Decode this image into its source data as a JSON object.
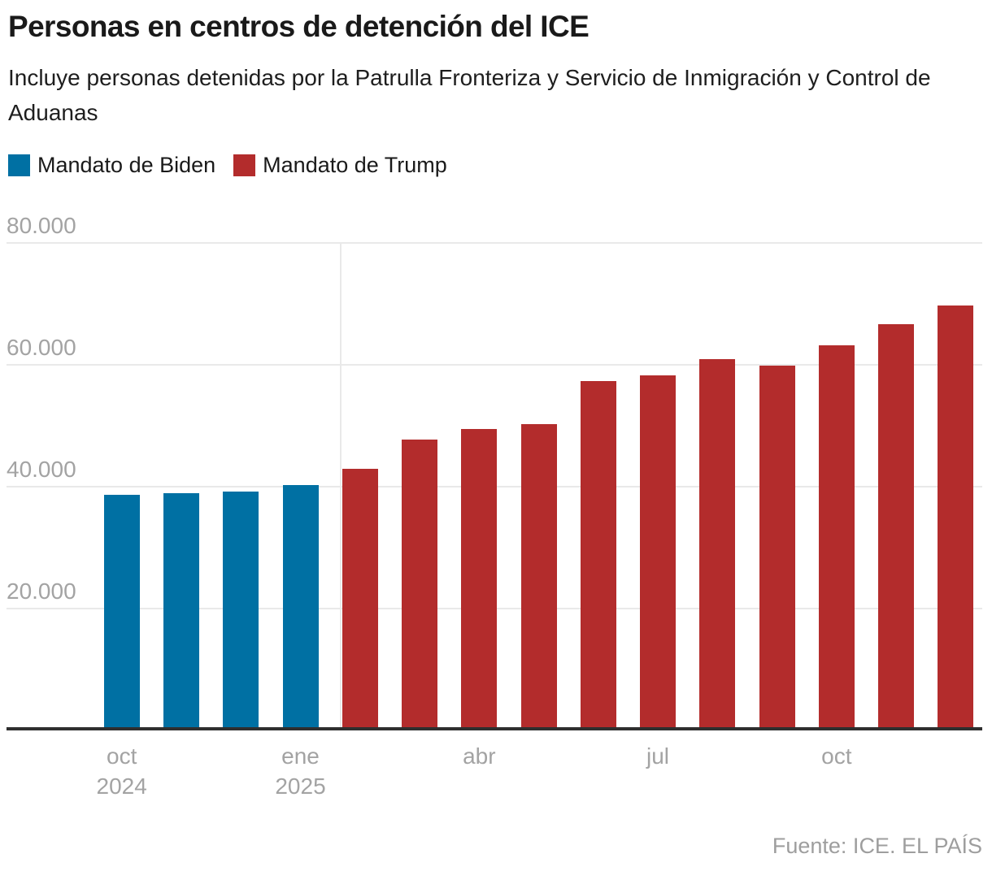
{
  "header": {
    "title": "Personas en centros de detención del ICE",
    "subtitle": "Incluye personas detenidas por la Patrulla Fronteriza y Servicio de Inmigración y Control de Aduanas"
  },
  "legend": {
    "items": [
      {
        "id": "biden",
        "label": "Mandato de Biden",
        "color": "#0070a3"
      },
      {
        "id": "trump",
        "label": "Mandato de Trump",
        "color": "#b32c2c"
      }
    ]
  },
  "chart_data": {
    "type": "bar",
    "title": "Personas en centros de detención del ICE",
    "subtitle": "Incluye personas detenidas por la Patrulla Fronteriza y Servicio de Inmigración y Control de Aduanas",
    "unit": "personas",
    "categories": [
      "oct 2024",
      "nov 2024",
      "dic 2024",
      "ene 2025",
      "feb 2025",
      "mar 2025",
      "abr 2025",
      "may 2025",
      "jun 2025",
      "jul 2025",
      "ago 2025",
      "sep 2025",
      "oct 2025",
      "nov 2025",
      "dic 2025"
    ],
    "values": [
      38700,
      38900,
      39200,
      40300,
      43000,
      47700,
      49500,
      50300,
      57300,
      58300,
      61000,
      59900,
      63200,
      66700,
      69800
    ],
    "series_by_point": [
      "biden",
      "biden",
      "biden",
      "biden",
      "trump",
      "trump",
      "trump",
      "trump",
      "trump",
      "trump",
      "trump",
      "trump",
      "trump",
      "trump",
      "trump"
    ],
    "series": [
      {
        "id": "biden",
        "name": "Mandato de Biden",
        "color": "#0070a3",
        "from": "oct 2024",
        "to": "ene 2025"
      },
      {
        "id": "trump",
        "name": "Mandato de Trump",
        "color": "#b32c2c",
        "from": "feb 2025",
        "to": "dic 2025"
      }
    ],
    "ylim": [
      0,
      80000
    ],
    "yticks": [
      {
        "value": 20000,
        "label": "20.000"
      },
      {
        "value": 40000,
        "label": "40.000"
      },
      {
        "value": 60000,
        "label": "60.000"
      },
      {
        "value": 80000,
        "label": "80.000"
      }
    ],
    "xticks": [
      {
        "index": 0,
        "lines": [
          "oct",
          "2024"
        ]
      },
      {
        "index": 3,
        "lines": [
          "ene",
          "2025"
        ]
      },
      {
        "index": 6,
        "lines": [
          "abr"
        ]
      },
      {
        "index": 9,
        "lines": [
          "jul"
        ]
      },
      {
        "index": 12,
        "lines": [
          "oct"
        ]
      }
    ],
    "grid": "horizontal",
    "legend_position": "top",
    "mandate_divider_after_index": 3
  },
  "colors": {
    "biden": "#0070a3",
    "trump": "#b32c2c",
    "axis": "#2f2f2f",
    "grid": "#e9e9e9",
    "tick_text": "#a3a3a3"
  },
  "footer": {
    "source": "Fuente: ICE. EL PAÍS"
  }
}
